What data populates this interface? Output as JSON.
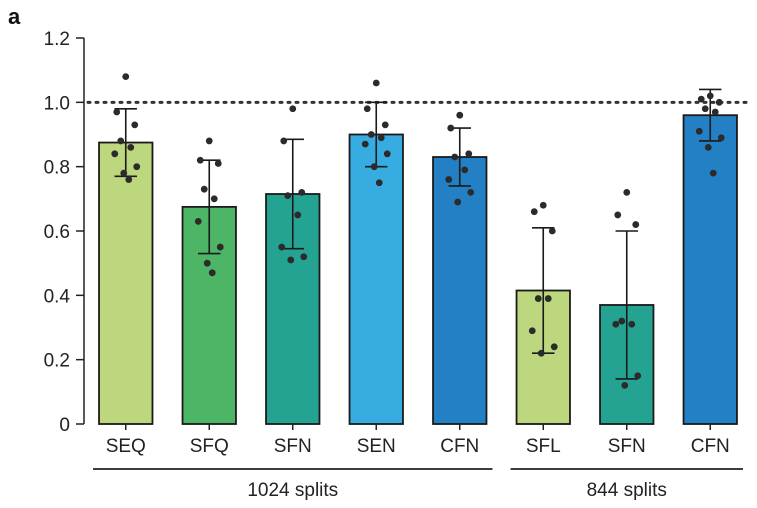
{
  "panel_label": "a",
  "chart_data": {
    "type": "bar",
    "title": "",
    "xlabel": "",
    "ylabel": "",
    "ylim": [
      0,
      1.2
    ],
    "yticks": [
      "0",
      "0.2",
      "0.4",
      "0.6",
      "0.8",
      "1.0",
      "1.2"
    ],
    "reference_line": 1.0,
    "categories": [
      "SEQ",
      "SFQ",
      "SFN",
      "SEN",
      "CFN",
      "SFL",
      "SFN",
      "CFN"
    ],
    "values": [
      0.875,
      0.675,
      0.715,
      0.9,
      0.83,
      0.415,
      0.37,
      0.96
    ],
    "error": [
      0.105,
      0.145,
      0.17,
      0.1,
      0.09,
      0.195,
      0.23,
      0.08
    ],
    "colors": [
      "#bcd77e",
      "#4cb566",
      "#25a392",
      "#37ace0",
      "#2480c4",
      "#bcd77e",
      "#25a392",
      "#2480c4"
    ],
    "points": [
      [
        1.08,
        0.97,
        0.93,
        0.88,
        0.86,
        0.84,
        0.8,
        0.78,
        0.76
      ],
      [
        0.88,
        0.82,
        0.81,
        0.73,
        0.7,
        0.63,
        0.55,
        0.5,
        0.47
      ],
      [
        0.98,
        0.88,
        0.72,
        0.71,
        0.65,
        0.55,
        0.52,
        0.51
      ],
      [
        1.06,
        0.98,
        0.93,
        0.9,
        0.89,
        0.87,
        0.84,
        0.8,
        0.75
      ],
      [
        0.96,
        0.92,
        0.84,
        0.83,
        0.79,
        0.76,
        0.72,
        0.69
      ],
      [
        0.68,
        0.66,
        0.6,
        0.39,
        0.39,
        0.29,
        0.24,
        0.22
      ],
      [
        0.72,
        0.65,
        0.62,
        0.32,
        0.31,
        0.31,
        0.15,
        0.12
      ],
      [
        1.02,
        1.01,
        1.0,
        0.98,
        0.97,
        0.91,
        0.89,
        0.86,
        0.78
      ]
    ],
    "groups": [
      {
        "label": "1024 splits",
        "start": 0,
        "end": 4
      },
      {
        "label": "844 splits",
        "start": 5,
        "end": 7
      }
    ],
    "grid": false,
    "legend": "none"
  }
}
